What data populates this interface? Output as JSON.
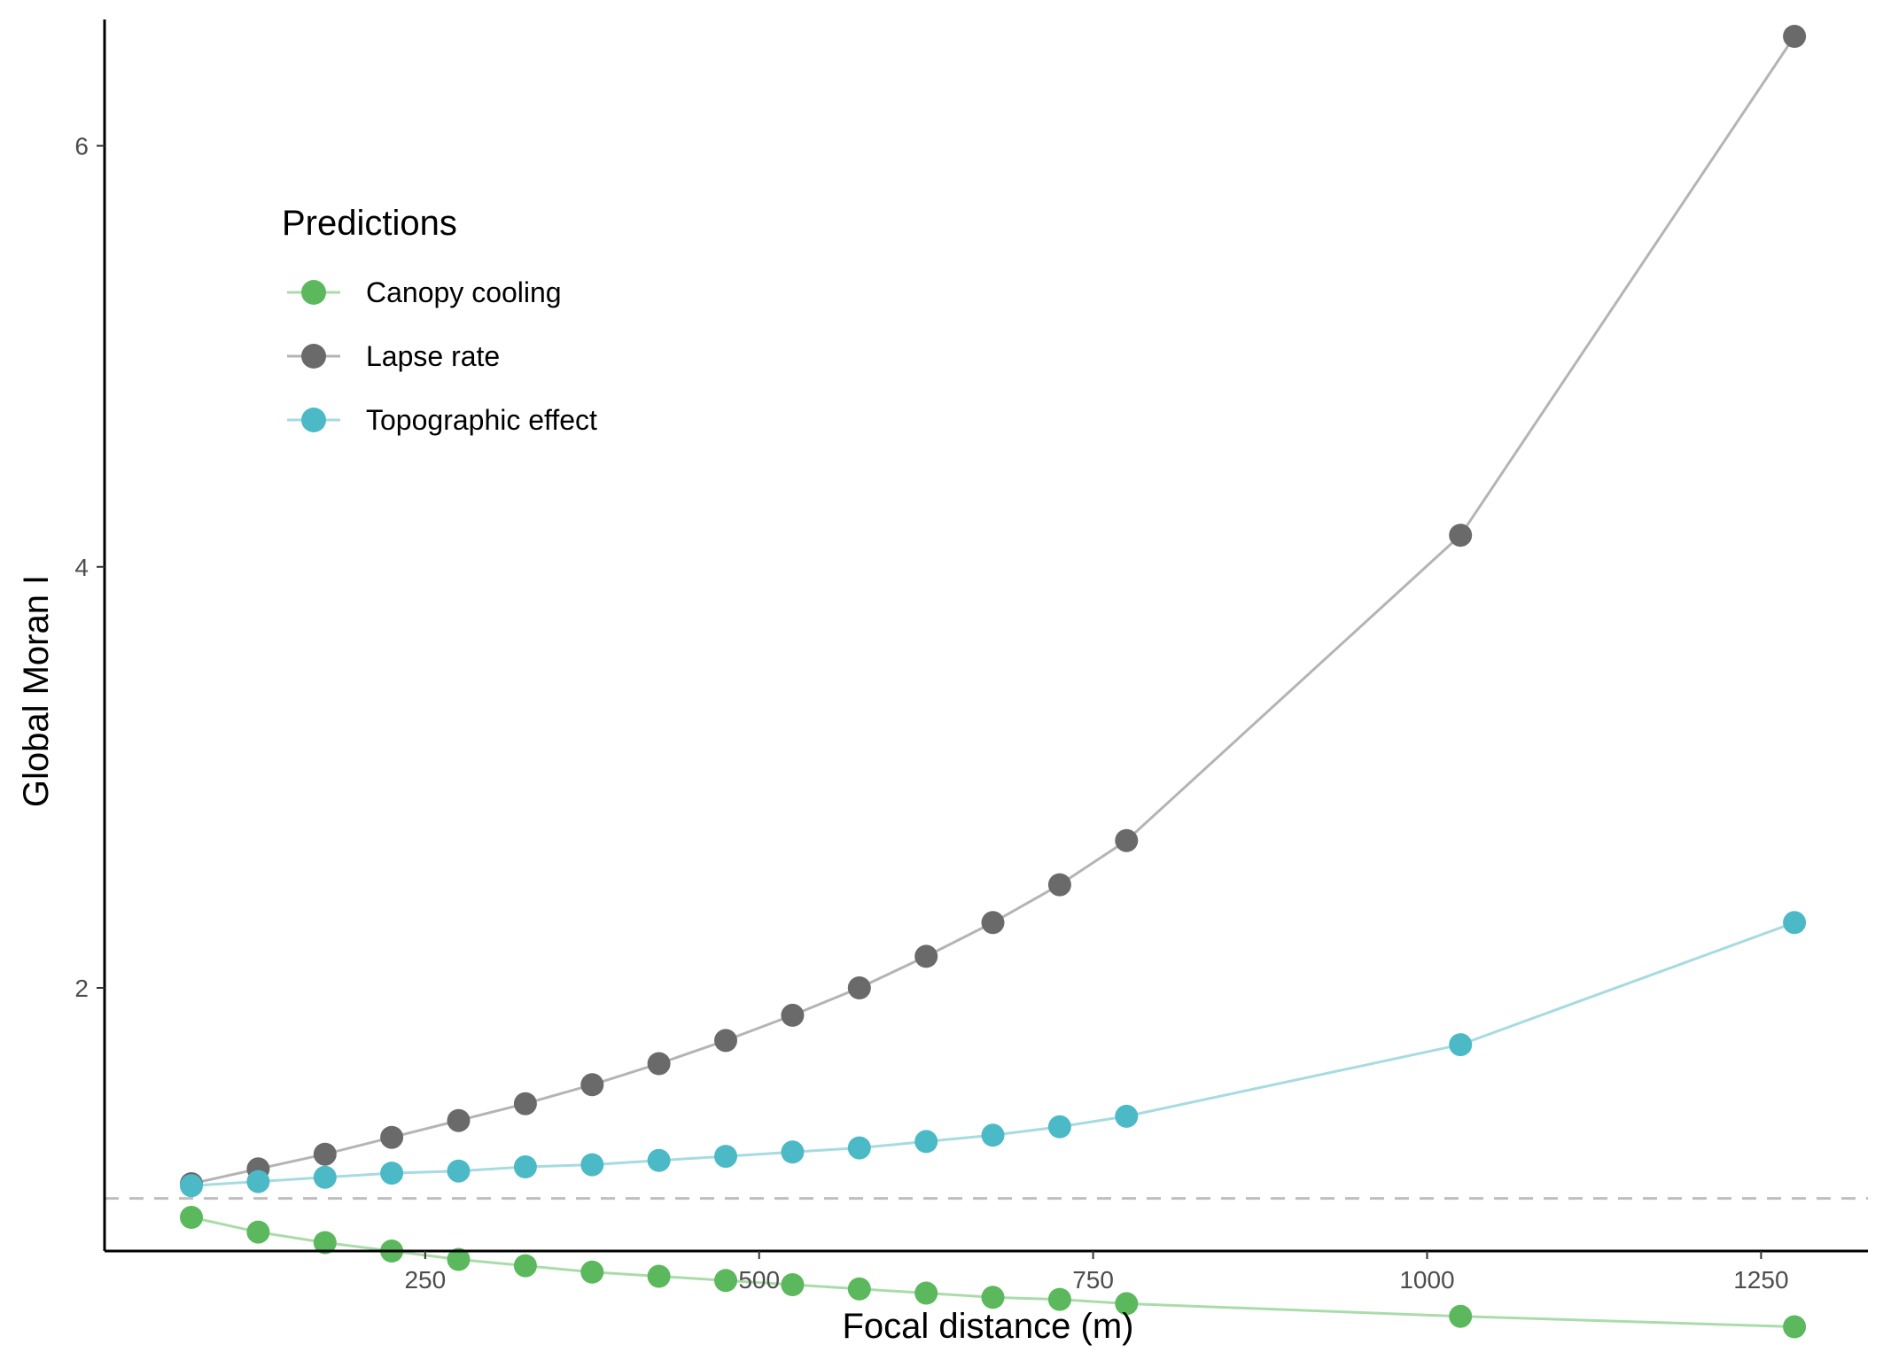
{
  "chart_data": {
    "type": "line",
    "title": "",
    "xlabel": "Focal distance (m)",
    "ylabel": "Global Moran I",
    "xlim": [
      10,
      1330
    ],
    "ylim": [
      0.75,
      6.6
    ],
    "x_ticks": [
      250,
      500,
      750,
      1000,
      1250
    ],
    "y_ticks": [
      2,
      4,
      6
    ],
    "grid": false,
    "reference_line": {
      "y": 1.0,
      "style": "dashed",
      "color": "#bebebe"
    },
    "legend": {
      "title": "Predictions",
      "placement": "top-left"
    },
    "x": [
      75,
      125,
      175,
      225,
      275,
      325,
      375,
      425,
      475,
      525,
      575,
      625,
      675,
      725,
      775,
      1025,
      1275
    ],
    "series": [
      {
        "name": "Canopy cooling",
        "point_color": "#5cb85c",
        "line_color": "#aadcaa",
        "values": [
          0.91,
          0.84,
          0.79,
          0.75,
          0.71,
          0.68,
          0.65,
          0.63,
          0.61,
          0.59,
          0.57,
          0.55,
          0.53,
          0.52,
          0.5,
          0.44,
          0.39
        ]
      },
      {
        "name": "Lapse rate",
        "point_color": "#6a6a6a",
        "line_color": "#b4b4b4",
        "values": [
          1.07,
          1.14,
          1.21,
          1.29,
          1.37,
          1.45,
          1.54,
          1.64,
          1.75,
          1.87,
          2.0,
          2.15,
          2.31,
          2.49,
          2.7,
          4.15,
          6.52
        ]
      },
      {
        "name": "Topographic effect",
        "point_color": "#4bbac6",
        "line_color": "#a6dbe0",
        "values": [
          1.06,
          1.08,
          1.1,
          1.12,
          1.13,
          1.15,
          1.16,
          1.18,
          1.2,
          1.22,
          1.24,
          1.27,
          1.3,
          1.34,
          1.39,
          1.73,
          2.31
        ]
      }
    ]
  }
}
